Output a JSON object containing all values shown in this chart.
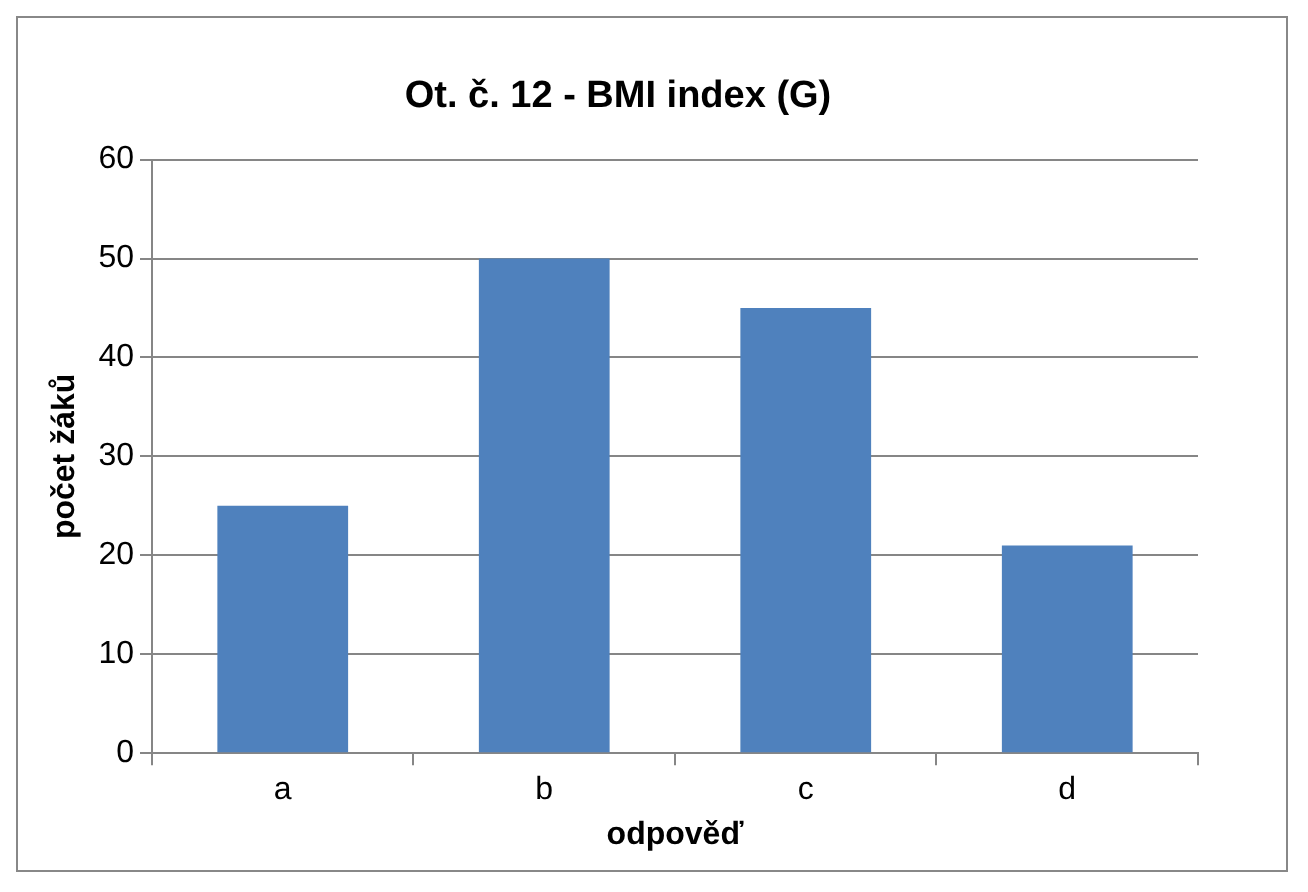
{
  "chart_data": {
    "type": "bar",
    "title": "Ot. č. 12 - BMI index (G)",
    "xlabel": "odpověď",
    "ylabel": "počet žáků",
    "categories": [
      "a",
      "b",
      "c",
      "d"
    ],
    "values": [
      25,
      50,
      45,
      21
    ],
    "color": "#4f81bd",
    "ylim": [
      0,
      60
    ],
    "yticks": [
      0,
      10,
      20,
      30,
      40,
      50,
      60
    ],
    "grid": "y"
  }
}
